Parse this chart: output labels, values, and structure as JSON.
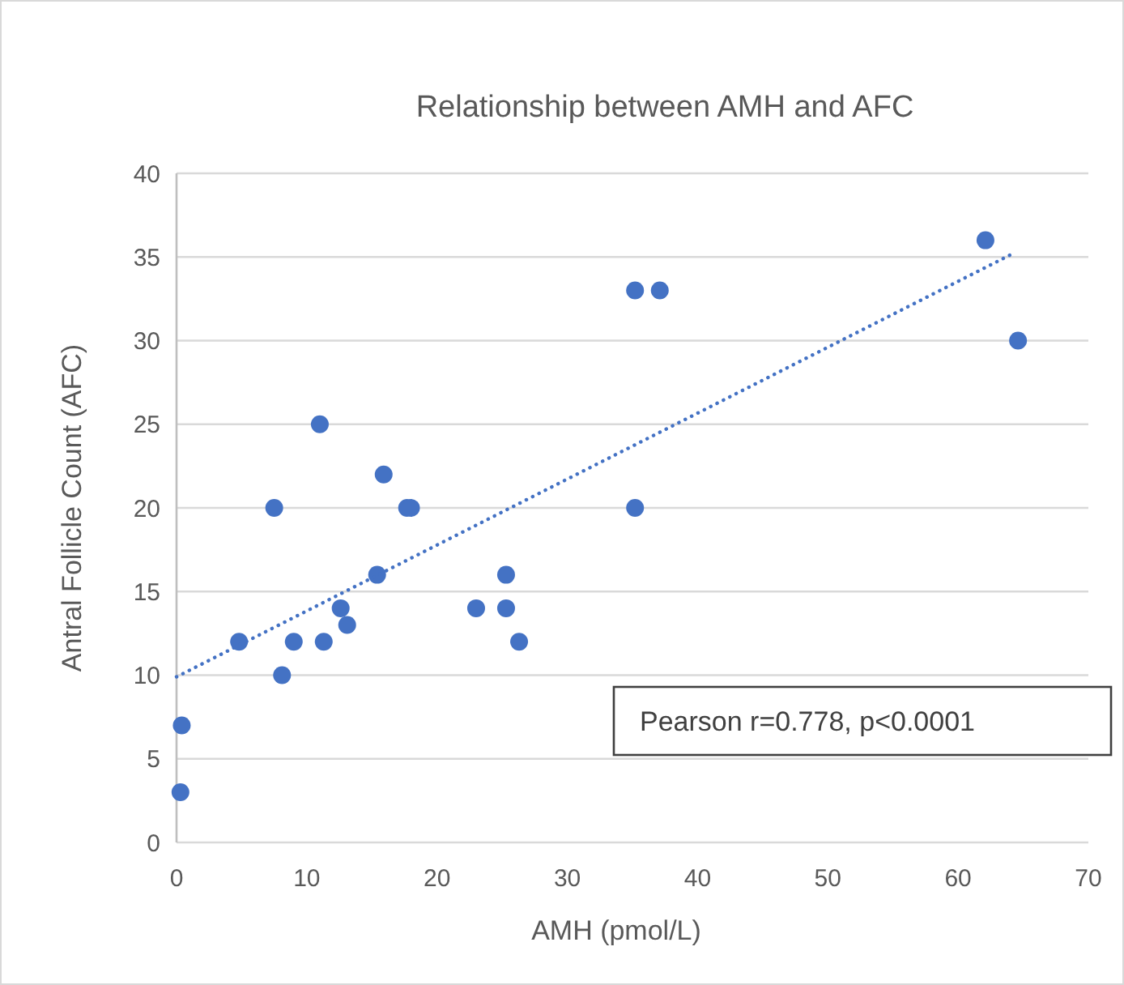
{
  "chart_data": {
    "type": "scatter",
    "title": "Relationship between AMH and AFC",
    "xlabel": "AMH (pmol/L)",
    "ylabel": "Antral Follicle Count (AFC)",
    "series": [
      {
        "color": "#4472c4",
        "marker": "circle",
        "x": [
          0.4,
          0.3,
          4.8,
          7.5,
          8.1,
          9.0,
          11.0,
          11.3,
          12.6,
          13.1,
          15.4,
          15.9,
          17.7,
          18.0,
          23.0,
          25.3,
          25.3,
          26.3,
          35.2,
          37.1,
          35.2,
          62.1,
          64.6
        ],
        "values": [
          7,
          3,
          12,
          20,
          10,
          12,
          25,
          12,
          14,
          13,
          16,
          22,
          20,
          20,
          14,
          16,
          14,
          12,
          33,
          33,
          20,
          36,
          30
        ]
      },
      {
        "type": "line",
        "color": "#4472c4",
        "line_style": "dotted",
        "x": [
          0,
          64.2
        ],
        "values": [
          9.9,
          35.2
        ]
      }
    ],
    "xlim": [
      0,
      70
    ],
    "xticks": [
      0,
      10,
      20,
      30,
      40,
      50,
      60,
      70
    ],
    "ylim": [
      0,
      40
    ],
    "yticks": [
      0,
      5,
      10,
      15,
      20,
      25,
      30,
      35,
      40
    ],
    "grid": "y",
    "annotations": [
      "Pearson r=0.778, p<0.0001"
    ]
  }
}
